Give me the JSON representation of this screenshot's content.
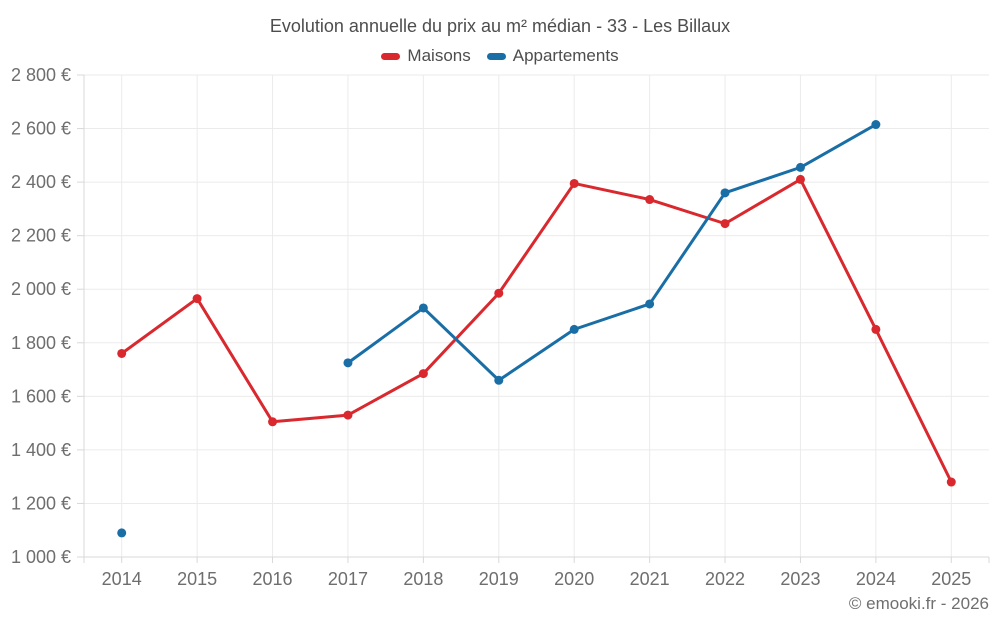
{
  "header": {
    "title": "Evolution annuelle du prix au m² médian - 33 - Les Billaux"
  },
  "legend": {
    "items": [
      {
        "label": "Maisons",
        "color": "#d9282e"
      },
      {
        "label": "Appartements",
        "color": "#1a6ea6"
      }
    ]
  },
  "footer": {
    "copyright": "© emooki.fr - 2026"
  },
  "colors": {
    "maisons": "#d9282e",
    "appartements": "#1a6ea6",
    "gridline": "#ebebeb",
    "axis": "#d8d8d8",
    "axis_text": "#6e6e6e",
    "title_text": "#4d4d4d"
  },
  "chart_data": {
    "type": "line",
    "title": "Evolution annuelle du prix au m² médian - 33 - Les Billaux",
    "x": [
      2014,
      2015,
      2016,
      2017,
      2018,
      2019,
      2020,
      2021,
      2022,
      2023,
      2024,
      2025
    ],
    "xtick_labels": [
      "2014",
      "2015",
      "2016",
      "2017",
      "2018",
      "2019",
      "2020",
      "2021",
      "2022",
      "2023",
      "2024",
      "2025"
    ],
    "series": [
      {
        "name": "Maisons",
        "color": "#d9282e",
        "values": [
          1760,
          1965,
          1505,
          1530,
          1685,
          1985,
          2395,
          2335,
          2245,
          2410,
          1850,
          1280
        ]
      },
      {
        "name": "Appartements",
        "color": "#1a6ea6",
        "values": [
          1090,
          null,
          null,
          1725,
          1930,
          1660,
          1850,
          1945,
          2360,
          2455,
          2615,
          null
        ]
      }
    ],
    "ylim": [
      1000,
      2800
    ],
    "ytick_step": 200,
    "ytick_values": [
      1000,
      1200,
      1400,
      1600,
      1800,
      2000,
      2200,
      2400,
      2600,
      2800
    ],
    "ytick_labels": [
      "1 000 €",
      "1 200 €",
      "1 400 €",
      "1 600 €",
      "1 800 €",
      "2 000 €",
      "2 200 €",
      "2 400 €",
      "2 600 €",
      "2 800 €"
    ],
    "ylabel_suffix": " €",
    "grid": true,
    "legend_position": "top",
    "annotation": "© emooki.fr - 2026"
  }
}
